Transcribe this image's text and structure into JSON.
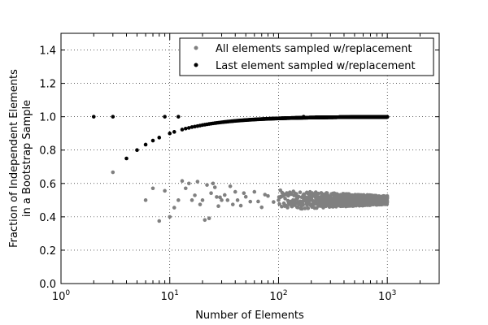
{
  "chart_data": {
    "type": "scatter",
    "xscale": "log",
    "xlim": [
      1,
      3000
    ],
    "ylim": [
      0.0,
      1.5
    ],
    "grid": true,
    "xlabel": "Number of Elements",
    "ylabel_lines": [
      "Fraction of Independent Elements",
      "in a Bootstrap Sample"
    ],
    "legend_placement": "top-right",
    "y_ticks": [
      0.0,
      0.2,
      0.4,
      0.6,
      0.8,
      1.0,
      1.2,
      1.4
    ],
    "y_tick_labels": [
      "0.0",
      "0.2",
      "0.4",
      "0.6",
      "0.8",
      "1.0",
      "1.2",
      "1.4"
    ],
    "x_ticks": [
      1,
      10,
      100,
      1000
    ],
    "x_tick_labels": [
      {
        "base": "10",
        "exp": "0"
      },
      {
        "base": "10",
        "exp": "1"
      },
      {
        "base": "10",
        "exp": "2"
      },
      {
        "base": "10",
        "exp": "3"
      }
    ],
    "series": [
      {
        "name": "All elements sampled w/replacement",
        "color": "#808080",
        "points": [
          [
            3,
            0.667
          ],
          [
            6,
            0.5
          ],
          [
            7,
            0.571
          ],
          [
            8,
            0.375
          ],
          [
            9,
            0.556
          ],
          [
            10,
            0.4
          ],
          [
            11,
            0.455
          ],
          [
            12,
            0.5
          ],
          [
            13,
            0.615
          ],
          [
            14,
            0.571
          ],
          [
            15,
            0.6
          ],
          [
            16,
            0.5
          ],
          [
            17,
            0.529
          ],
          [
            18,
            0.611
          ],
          [
            19,
            0.474
          ],
          [
            20,
            0.5
          ],
          [
            21,
            0.381
          ],
          [
            22,
            0.591
          ],
          [
            23,
            0.391
          ],
          [
            24,
            0.542
          ],
          [
            25,
            0.6
          ],
          [
            26,
            0.577
          ],
          [
            27,
            0.519
          ],
          [
            28,
            0.464
          ],
          [
            29,
            0.517
          ],
          [
            30,
            0.5
          ],
          [
            32,
            0.531
          ],
          [
            34,
            0.5
          ],
          [
            36,
            0.583
          ],
          [
            38,
            0.474
          ],
          [
            40,
            0.55
          ],
          [
            42,
            0.5
          ],
          [
            45,
            0.467
          ],
          [
            48,
            0.542
          ],
          [
            50,
            0.52
          ],
          [
            55,
            0.491
          ],
          [
            60,
            0.55
          ],
          [
            65,
            0.492
          ],
          [
            70,
            0.457
          ],
          [
            75,
            0.533
          ],
          [
            80,
            0.525
          ],
          [
            90,
            0.489
          ],
          [
            100,
            0.5
          ]
        ],
        "band": {
          "from": 100,
          "to": 1000,
          "center": 0.5,
          "spread_start": 0.06,
          "spread_end": 0.025
        }
      },
      {
        "name": "Last element sampled w/replacement",
        "color": "#000000",
        "formula": "1-(1-1/n)^n + ... (approx)",
        "points": [
          [
            2,
            1.0
          ],
          [
            3,
            1.0
          ],
          [
            4,
            0.75
          ],
          [
            5,
            0.8
          ],
          [
            6,
            0.833
          ],
          [
            7,
            0.857
          ],
          [
            8,
            0.875
          ],
          [
            9,
            1.0
          ],
          [
            10,
            0.9
          ],
          [
            11,
            0.909
          ],
          [
            12,
            1.0
          ],
          [
            13,
            0.923
          ],
          [
            14,
            0.929
          ],
          [
            15,
            0.933
          ],
          [
            16,
            0.938
          ],
          [
            17,
            0.941
          ],
          [
            18,
            0.944
          ],
          [
            19,
            0.947
          ],
          [
            20,
            0.95
          ]
        ],
        "curve": {
          "from": 20,
          "to": 1000,
          "model": "1 - 1/n"
        }
      }
    ]
  }
}
